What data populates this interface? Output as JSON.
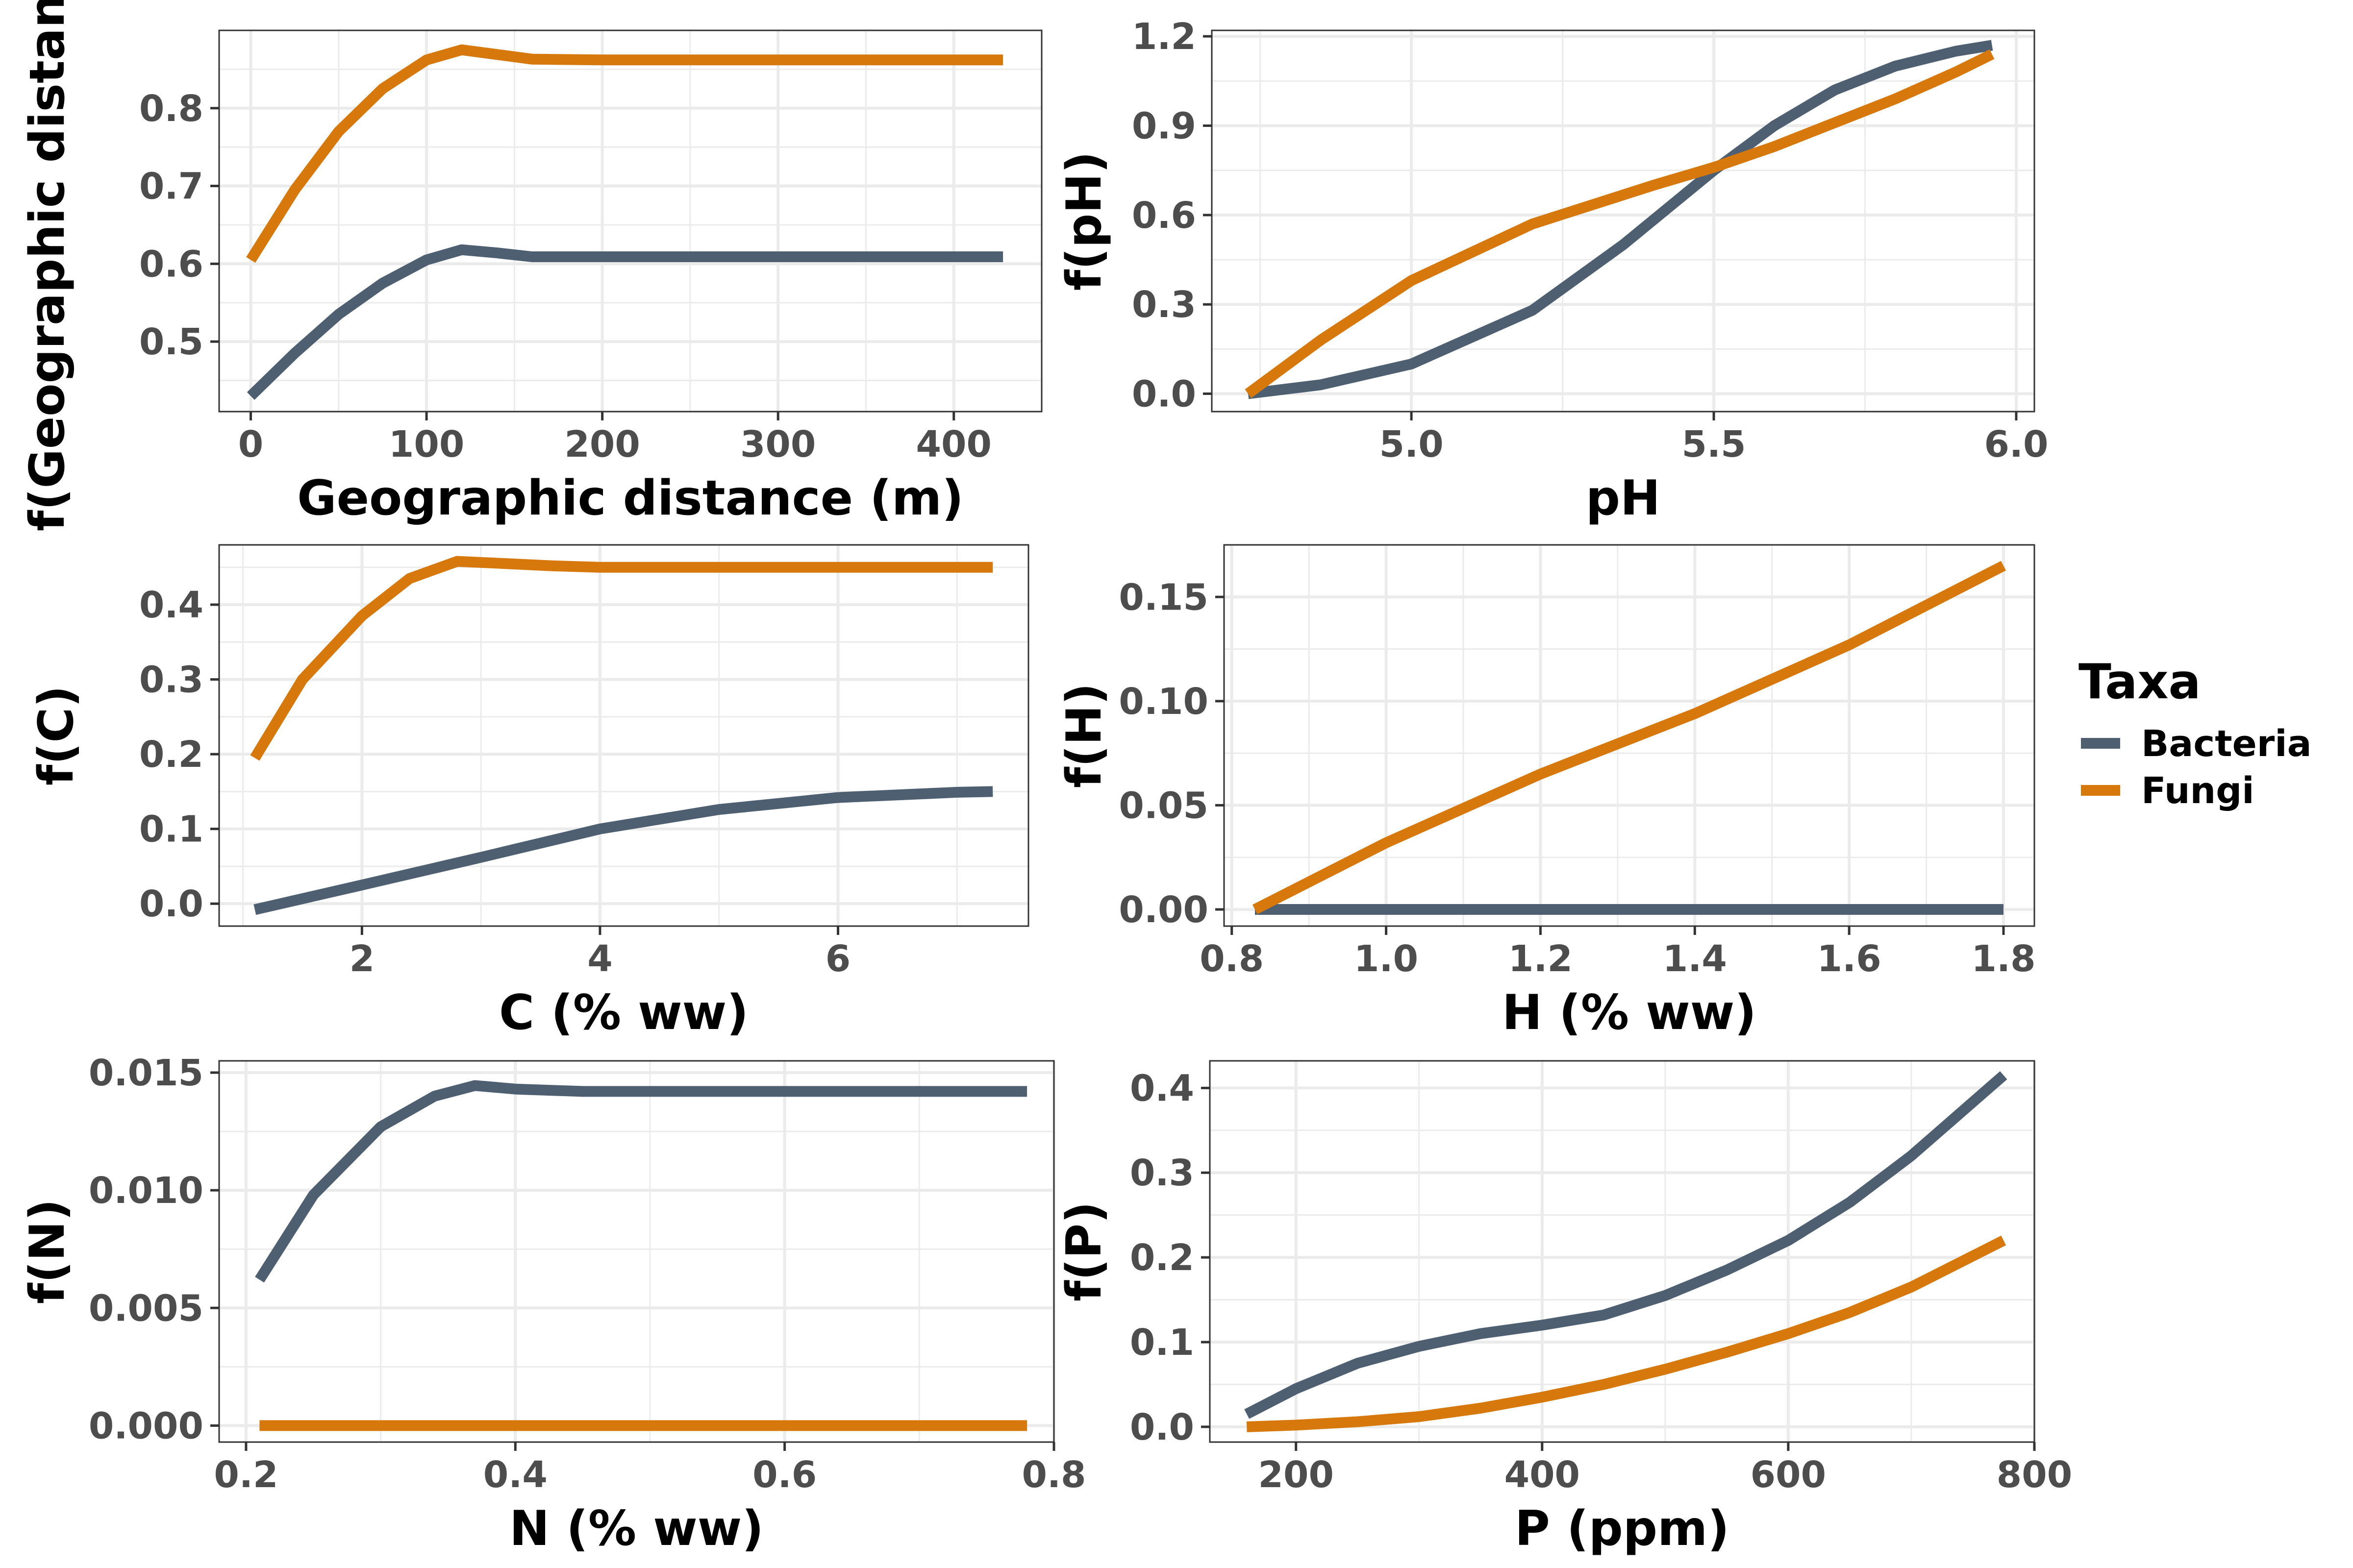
{
  "chart_data": [
    {
      "type": "line",
      "xlabel": "Geographic distance (m)",
      "ylabel": "f(Geographic distance)",
      "xlim": [
        -18,
        450
      ],
      "ylim": [
        0.41,
        0.9
      ],
      "xticks": [
        0,
        100,
        200,
        300,
        400
      ],
      "yticks": [
        0.5,
        0.6,
        0.7,
        0.8
      ],
      "series": [
        {
          "name": "Bacteria",
          "points": [
            [
              0,
              0.43
            ],
            [
              25,
              0.485
            ],
            [
              50,
              0.535
            ],
            [
              75,
              0.575
            ],
            [
              100,
              0.605
            ],
            [
              120,
              0.618
            ],
            [
              140,
              0.614
            ],
            [
              160,
              0.609
            ],
            [
              200,
              0.609
            ],
            [
              300,
              0.609
            ],
            [
              400,
              0.609
            ],
            [
              428,
              0.609
            ]
          ]
        },
        {
          "name": "Fungi",
          "points": [
            [
              0,
              0.605
            ],
            [
              25,
              0.695
            ],
            [
              50,
              0.77
            ],
            [
              75,
              0.825
            ],
            [
              100,
              0.862
            ],
            [
              120,
              0.875
            ],
            [
              140,
              0.869
            ],
            [
              160,
              0.863
            ],
            [
              200,
              0.862
            ],
            [
              300,
              0.862
            ],
            [
              400,
              0.862
            ],
            [
              428,
              0.862
            ]
          ]
        }
      ]
    },
    {
      "type": "line",
      "xlabel": "pH",
      "ylabel": "f(pH)",
      "xlim": [
        4.67,
        6.03
      ],
      "ylim": [
        -0.06,
        1.22
      ],
      "xticks": [
        5.0,
        5.5,
        6.0
      ],
      "xtick_labels": [
        "5.0",
        "5.5",
        "6.0"
      ],
      "yticks": [
        0.0,
        0.3,
        0.6,
        0.9,
        1.2
      ],
      "ytick_labels": [
        "0.0",
        "0.3",
        "0.6",
        "0.9",
        "1.2"
      ],
      "series": [
        {
          "name": "Bacteria",
          "points": [
            [
              4.73,
              0.0
            ],
            [
              4.85,
              0.03
            ],
            [
              5.0,
              0.1
            ],
            [
              5.2,
              0.28
            ],
            [
              5.35,
              0.5
            ],
            [
              5.5,
              0.75
            ],
            [
              5.6,
              0.9
            ],
            [
              5.7,
              1.02
            ],
            [
              5.8,
              1.1
            ],
            [
              5.9,
              1.15
            ],
            [
              5.96,
              1.17
            ]
          ]
        },
        {
          "name": "Fungi",
          "points": [
            [
              4.73,
              0.0
            ],
            [
              4.85,
              0.18
            ],
            [
              5.0,
              0.38
            ],
            [
              5.2,
              0.57
            ],
            [
              5.4,
              0.7
            ],
            [
              5.5,
              0.76
            ],
            [
              5.6,
              0.83
            ],
            [
              5.7,
              0.91
            ],
            [
              5.8,
              0.99
            ],
            [
              5.9,
              1.08
            ],
            [
              5.96,
              1.14
            ]
          ]
        }
      ]
    },
    {
      "type": "line",
      "xlabel": "C (% ww)",
      "ylabel": "f(C)",
      "xlim": [
        0.8,
        7.6
      ],
      "ylim": [
        -0.03,
        0.48
      ],
      "xticks": [
        2,
        4,
        6
      ],
      "yticks": [
        0.0,
        0.1,
        0.2,
        0.3,
        0.4
      ],
      "ytick_labels": [
        "0.0",
        "0.1",
        "0.2",
        "0.3",
        "0.4"
      ],
      "series": [
        {
          "name": "Bacteria",
          "points": [
            [
              1.1,
              -0.008
            ],
            [
              2,
              0.025
            ],
            [
              3,
              0.062
            ],
            [
              4,
              0.1
            ],
            [
              5,
              0.126
            ],
            [
              6,
              0.142
            ],
            [
              7,
              0.149
            ],
            [
              7.3,
              0.15
            ]
          ]
        },
        {
          "name": "Fungi",
          "points": [
            [
              1.1,
              0.195
            ],
            [
              1.5,
              0.3
            ],
            [
              2,
              0.385
            ],
            [
              2.4,
              0.435
            ],
            [
              2.8,
              0.458
            ],
            [
              3.2,
              0.455
            ],
            [
              3.6,
              0.452
            ],
            [
              4,
              0.45
            ],
            [
              5,
              0.45
            ],
            [
              6,
              0.45
            ],
            [
              7.3,
              0.45
            ]
          ]
        }
      ]
    },
    {
      "type": "line",
      "xlabel": "H (% ww)",
      "ylabel": "f(H)",
      "xlim": [
        0.79,
        1.84
      ],
      "ylim": [
        -0.008,
        0.175
      ],
      "xticks": [
        0.8,
        1.0,
        1.2,
        1.4,
        1.6,
        1.8
      ],
      "xtick_labels": [
        "0.8",
        "1.0",
        "1.2",
        "1.4",
        "1.6",
        "1.8"
      ],
      "yticks": [
        0.0,
        0.05,
        0.1,
        0.15
      ],
      "ytick_labels": [
        "0.00",
        "0.05",
        "0.10",
        "0.15"
      ],
      "series": [
        {
          "name": "Bacteria",
          "points": [
            [
              0.83,
              0.0
            ],
            [
              1.8,
              0.0
            ]
          ]
        },
        {
          "name": "Fungi",
          "points": [
            [
              0.83,
              0.0
            ],
            [
              1.0,
              0.032
            ],
            [
              1.2,
              0.065
            ],
            [
              1.4,
              0.094
            ],
            [
              1.6,
              0.127
            ],
            [
              1.8,
              0.165
            ]
          ]
        }
      ]
    },
    {
      "type": "line",
      "xlabel": "N (% ww)",
      "ylabel": "f(N)",
      "xlim": [
        0.18,
        0.8
      ],
      "ylim": [
        -0.0007,
        0.0155
      ],
      "xticks": [
        0.2,
        0.4,
        0.6,
        0.8
      ],
      "xtick_labels": [
        "0.2",
        "0.4",
        "0.6",
        "0.8"
      ],
      "yticks": [
        0.0,
        0.005,
        0.01,
        0.015
      ],
      "ytick_labels": [
        "0.000",
        "0.005",
        "0.010",
        "0.015"
      ],
      "series": [
        {
          "name": "Bacteria",
          "points": [
            [
              0.21,
              0.0062
            ],
            [
              0.25,
              0.0098
            ],
            [
              0.3,
              0.0127
            ],
            [
              0.34,
              0.014
            ],
            [
              0.37,
              0.01445
            ],
            [
              0.4,
              0.0143
            ],
            [
              0.45,
              0.0142
            ],
            [
              0.5,
              0.0142
            ],
            [
              0.6,
              0.0142
            ],
            [
              0.7,
              0.0142
            ],
            [
              0.78,
              0.0142
            ]
          ]
        },
        {
          "name": "Fungi",
          "points": [
            [
              0.21,
              0.0
            ],
            [
              0.78,
              0.0
            ]
          ]
        }
      ]
    },
    {
      "type": "line",
      "xlabel": "P (ppm)",
      "ylabel": "f(P)",
      "xlim": [
        130,
        800
      ],
      "ylim": [
        -0.018,
        0.432
      ],
      "xticks": [
        200,
        400,
        600,
        800
      ],
      "yticks": [
        0.0,
        0.1,
        0.2,
        0.3,
        0.4
      ],
      "ytick_labels": [
        "0.0",
        "0.1",
        "0.2",
        "0.3",
        "0.4"
      ],
      "series": [
        {
          "name": "Bacteria",
          "points": [
            [
              160,
              0.015
            ],
            [
              200,
              0.045
            ],
            [
              250,
              0.075
            ],
            [
              300,
              0.095
            ],
            [
              350,
              0.11
            ],
            [
              400,
              0.12
            ],
            [
              450,
              0.132
            ],
            [
              500,
              0.155
            ],
            [
              550,
              0.185
            ],
            [
              600,
              0.22
            ],
            [
              650,
              0.265
            ],
            [
              700,
              0.32
            ],
            [
              775,
              0.415
            ]
          ]
        },
        {
          "name": "Fungi",
          "points": [
            [
              160,
              0.0
            ],
            [
              200,
              0.002
            ],
            [
              250,
              0.006
            ],
            [
              300,
              0.012
            ],
            [
              350,
              0.022
            ],
            [
              400,
              0.035
            ],
            [
              450,
              0.05
            ],
            [
              500,
              0.068
            ],
            [
              550,
              0.088
            ],
            [
              600,
              0.11
            ],
            [
              650,
              0.135
            ],
            [
              700,
              0.165
            ],
            [
              775,
              0.22
            ]
          ]
        }
      ]
    }
  ],
  "legend": {
    "title": "Taxa",
    "position": "right",
    "items": [
      {
        "label": "Bacteria",
        "color": "#4d5f71"
      },
      {
        "label": "Fungi",
        "color": "#d6780b"
      }
    ]
  },
  "colors": {
    "Bacteria": "#4d5f71",
    "Fungi": "#d6780b",
    "grid": "#ebebeb",
    "panel_border": "#333333"
  }
}
